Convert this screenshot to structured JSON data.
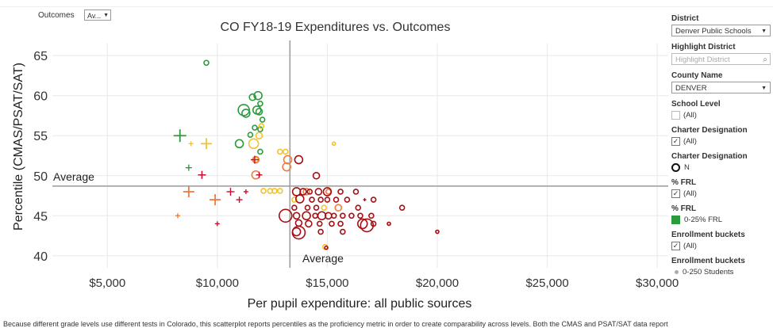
{
  "top": {
    "outcomes_label": "Outcomes",
    "outcomes_value": "Av..."
  },
  "chart_data": {
    "type": "scatter",
    "title": "CO FY18-19 Expenditures vs. Outcomes",
    "xlabel": "Per pupil expenditure: all public sources",
    "ylabel": "Percentile (CMAS/PSAT/SAT)",
    "xlim": [
      2500,
      30500
    ],
    "ylim": [
      38.5,
      66.5
    ],
    "xticks": [
      5000,
      10000,
      15000,
      20000,
      25000,
      30000
    ],
    "xtick_labels": [
      "$5,000",
      "$10,000",
      "$15,000",
      "$20,000",
      "$25,000",
      "$30,000"
    ],
    "yticks": [
      40,
      45,
      50,
      55,
      60,
      65
    ],
    "ytick_labels": [
      "40",
      "45",
      "50",
      "55",
      "60",
      "65"
    ],
    "avg_x": 13300,
    "avg_y": 48.7,
    "avg_x_label": "Average",
    "avg_y_label": "Average",
    "colors": {
      "green": "#2e9a3e",
      "yellow": "#f2c230",
      "orange": "#f07b3f",
      "red": "#c8102e",
      "darkred": "#a50f15"
    },
    "points": [
      {
        "x": 9500,
        "y": 64.1,
        "s": "c",
        "c": "green",
        "r": 3
      },
      {
        "x": 11200,
        "y": 58.2,
        "s": "c",
        "c": "green",
        "r": 7
      },
      {
        "x": 11300,
        "y": 57.8,
        "s": "c",
        "c": "green",
        "r": 5
      },
      {
        "x": 11600,
        "y": 59.8,
        "s": "c",
        "c": "green",
        "r": 4
      },
      {
        "x": 11850,
        "y": 60.0,
        "s": "c",
        "c": "green",
        "r": 5
      },
      {
        "x": 11800,
        "y": 58.2,
        "s": "c",
        "c": "green",
        "r": 5
      },
      {
        "x": 11900,
        "y": 58.0,
        "s": "c",
        "c": "green",
        "r": 4
      },
      {
        "x": 11950,
        "y": 59.0,
        "s": "c",
        "c": "green",
        "r": 3
      },
      {
        "x": 12050,
        "y": 57.0,
        "s": "c",
        "c": "green",
        "r": 3
      },
      {
        "x": 11700,
        "y": 56.0,
        "s": "c",
        "c": "green",
        "r": 3
      },
      {
        "x": 11500,
        "y": 55.1,
        "s": "c",
        "c": "green",
        "r": 3
      },
      {
        "x": 11950,
        "y": 55.8,
        "s": "c",
        "c": "green",
        "r": 3
      },
      {
        "x": 11000,
        "y": 54.0,
        "s": "c",
        "c": "green",
        "r": 5
      },
      {
        "x": 11950,
        "y": 53.0,
        "s": "c",
        "c": "green",
        "r": 3
      },
      {
        "x": 8300,
        "y": 55.0,
        "s": "p",
        "c": "green",
        "r": 8
      },
      {
        "x": 8700,
        "y": 51.0,
        "s": "p",
        "c": "green",
        "r": 4
      },
      {
        "x": 9300,
        "y": 50.1,
        "s": "p",
        "c": "green",
        "r": 5
      },
      {
        "x": 11900,
        "y": 55.0,
        "s": "c",
        "c": "yellow",
        "r": 4
      },
      {
        "x": 12000,
        "y": 56.2,
        "s": "c",
        "c": "yellow",
        "r": 3
      },
      {
        "x": 11650,
        "y": 54.0,
        "s": "c",
        "c": "yellow",
        "r": 6
      },
      {
        "x": 12850,
        "y": 53.0,
        "s": "c",
        "c": "yellow",
        "r": 3
      },
      {
        "x": 13100,
        "y": 53.0,
        "s": "c",
        "c": "yellow",
        "r": 3
      },
      {
        "x": 11750,
        "y": 52.0,
        "s": "c",
        "c": "yellow",
        "r": 3
      },
      {
        "x": 12100,
        "y": 48.1,
        "s": "c",
        "c": "yellow",
        "r": 3
      },
      {
        "x": 12400,
        "y": 48.1,
        "s": "c",
        "c": "yellow",
        "r": 3
      },
      {
        "x": 12600,
        "y": 48.1,
        "s": "c",
        "c": "yellow",
        "r": 3
      },
      {
        "x": 12850,
        "y": 48.1,
        "s": "c",
        "c": "yellow",
        "r": 3
      },
      {
        "x": 15300,
        "y": 54.0,
        "s": "c",
        "c": "yellow",
        "r": 2
      },
      {
        "x": 14850,
        "y": 46.0,
        "s": "c",
        "c": "yellow",
        "r": 3
      },
      {
        "x": 13500,
        "y": 47.0,
        "s": "c",
        "c": "yellow",
        "r": 3
      },
      {
        "x": 14900,
        "y": 41.1,
        "s": "c",
        "c": "yellow",
        "r": 3
      },
      {
        "x": 8800,
        "y": 54.0,
        "s": "p",
        "c": "yellow",
        "r": 3
      },
      {
        "x": 9500,
        "y": 54.0,
        "s": "p",
        "c": "yellow",
        "r": 7
      },
      {
        "x": 11750,
        "y": 52.0,
        "s": "c",
        "c": "orange",
        "r": 4
      },
      {
        "x": 11750,
        "y": 50.1,
        "s": "c",
        "c": "orange",
        "r": 5
      },
      {
        "x": 13200,
        "y": 52.0,
        "s": "c",
        "c": "orange",
        "r": 5
      },
      {
        "x": 13150,
        "y": 51.1,
        "s": "c",
        "c": "orange",
        "r": 5
      },
      {
        "x": 14050,
        "y": 48.0,
        "s": "c",
        "c": "orange",
        "r": 4
      },
      {
        "x": 15050,
        "y": 48.0,
        "s": "c",
        "c": "orange",
        "r": 3
      },
      {
        "x": 15500,
        "y": 46.0,
        "s": "c",
        "c": "orange",
        "r": 4
      },
      {
        "x": 8700,
        "y": 48.0,
        "s": "p",
        "c": "orange",
        "r": 7
      },
      {
        "x": 9900,
        "y": 47.0,
        "s": "p",
        "c": "orange",
        "r": 7
      },
      {
        "x": 8200,
        "y": 45.0,
        "s": "p",
        "c": "orange",
        "r": 3
      },
      {
        "x": 11700,
        "y": 52.0,
        "s": "p",
        "c": "red",
        "r": 5
      },
      {
        "x": 11900,
        "y": 50.1,
        "s": "p",
        "c": "red",
        "r": 4
      },
      {
        "x": 9300,
        "y": 50.1,
        "s": "p",
        "c": "red",
        "r": 5
      },
      {
        "x": 10600,
        "y": 48.0,
        "s": "p",
        "c": "red",
        "r": 5
      },
      {
        "x": 11300,
        "y": 48.0,
        "s": "p",
        "c": "red",
        "r": 3
      },
      {
        "x": 11000,
        "y": 47.0,
        "s": "p",
        "c": "red",
        "r": 4
      },
      {
        "x": 10000,
        "y": 44.0,
        "s": "p",
        "c": "red",
        "r": 3
      },
      {
        "x": 13700,
        "y": 52.0,
        "s": "c",
        "c": "darkred",
        "r": 5
      },
      {
        "x": 14500,
        "y": 50.0,
        "s": "c",
        "c": "darkred",
        "r": 4
      },
      {
        "x": 13600,
        "y": 48.0,
        "s": "c",
        "c": "darkred",
        "r": 5
      },
      {
        "x": 13900,
        "y": 48.0,
        "s": "c",
        "c": "darkred",
        "r": 4
      },
      {
        "x": 14200,
        "y": 48.0,
        "s": "c",
        "c": "darkred",
        "r": 3
      },
      {
        "x": 14600,
        "y": 48.0,
        "s": "c",
        "c": "darkred",
        "r": 4
      },
      {
        "x": 15000,
        "y": 48.0,
        "s": "c",
        "c": "darkred",
        "r": 5
      },
      {
        "x": 13750,
        "y": 47.1,
        "s": "c",
        "c": "darkred",
        "r": 5
      },
      {
        "x": 14300,
        "y": 47.0,
        "s": "c",
        "c": "darkred",
        "r": 3
      },
      {
        "x": 14700,
        "y": 47.0,
        "s": "c",
        "c": "darkred",
        "r": 3
      },
      {
        "x": 15000,
        "y": 47.0,
        "s": "c",
        "c": "darkred",
        "r": 3
      },
      {
        "x": 15400,
        "y": 47.0,
        "s": "c",
        "c": "darkred",
        "r": 3
      },
      {
        "x": 16300,
        "y": 48.0,
        "s": "c",
        "c": "darkred",
        "r": 3
      },
      {
        "x": 17100,
        "y": 47.0,
        "s": "c",
        "c": "darkred",
        "r": 3
      },
      {
        "x": 15600,
        "y": 48.0,
        "s": "c",
        "c": "darkred",
        "r": 3
      },
      {
        "x": 15900,
        "y": 47.0,
        "s": "c",
        "c": "darkred",
        "r": 3
      },
      {
        "x": 16400,
        "y": 46.0,
        "s": "c",
        "c": "darkred",
        "r": 3
      },
      {
        "x": 16700,
        "y": 47.0,
        "s": "p",
        "c": "darkred",
        "r": 2
      },
      {
        "x": 13500,
        "y": 46.0,
        "s": "c",
        "c": "darkred",
        "r": 3
      },
      {
        "x": 14100,
        "y": 46.0,
        "s": "c",
        "c": "darkred",
        "r": 3
      },
      {
        "x": 14500,
        "y": 46.0,
        "s": "c",
        "c": "darkred",
        "r": 3
      },
      {
        "x": 13100,
        "y": 45.0,
        "s": "c",
        "c": "darkred",
        "r": 8
      },
      {
        "x": 13600,
        "y": 45.0,
        "s": "c",
        "c": "darkred",
        "r": 4
      },
      {
        "x": 14050,
        "y": 45.0,
        "s": "c",
        "c": "darkred",
        "r": 5
      },
      {
        "x": 14450,
        "y": 45.0,
        "s": "c",
        "c": "darkred",
        "r": 3
      },
      {
        "x": 14750,
        "y": 45.0,
        "s": "c",
        "c": "darkred",
        "r": 5
      },
      {
        "x": 15050,
        "y": 45.0,
        "s": "c",
        "c": "darkred",
        "r": 4
      },
      {
        "x": 15300,
        "y": 45.0,
        "s": "c",
        "c": "darkred",
        "r": 3
      },
      {
        "x": 15700,
        "y": 45.0,
        "s": "c",
        "c": "darkred",
        "r": 3
      },
      {
        "x": 16100,
        "y": 45.0,
        "s": "c",
        "c": "darkred",
        "r": 3
      },
      {
        "x": 16500,
        "y": 45.0,
        "s": "c",
        "c": "darkred",
        "r": 3
      },
      {
        "x": 17000,
        "y": 45.0,
        "s": "c",
        "c": "darkred",
        "r": 3
      },
      {
        "x": 18400,
        "y": 46.0,
        "s": "c",
        "c": "darkred",
        "r": 3
      },
      {
        "x": 13700,
        "y": 44.1,
        "s": "c",
        "c": "darkred",
        "r": 4
      },
      {
        "x": 14150,
        "y": 44.0,
        "s": "c",
        "c": "darkred",
        "r": 4
      },
      {
        "x": 14650,
        "y": 44.0,
        "s": "c",
        "c": "darkred",
        "r": 3
      },
      {
        "x": 15200,
        "y": 44.0,
        "s": "c",
        "c": "darkred",
        "r": 3
      },
      {
        "x": 15600,
        "y": 44.0,
        "s": "c",
        "c": "darkred",
        "r": 3
      },
      {
        "x": 16600,
        "y": 44.0,
        "s": "c",
        "c": "darkred",
        "r": 6
      },
      {
        "x": 16800,
        "y": 43.8,
        "s": "c",
        "c": "darkred",
        "r": 8
      },
      {
        "x": 17100,
        "y": 44.0,
        "s": "c",
        "c": "darkred",
        "r": 3
      },
      {
        "x": 17800,
        "y": 44.0,
        "s": "c",
        "c": "darkred",
        "r": 2
      },
      {
        "x": 13600,
        "y": 43.0,
        "s": "c",
        "c": "darkred",
        "r": 5
      },
      {
        "x": 13700,
        "y": 42.9,
        "s": "c",
        "c": "darkred",
        "r": 8
      },
      {
        "x": 14700,
        "y": 43.0,
        "s": "c",
        "c": "darkred",
        "r": 3
      },
      {
        "x": 15700,
        "y": 43.0,
        "s": "c",
        "c": "darkred",
        "r": 3
      },
      {
        "x": 20000,
        "y": 43.0,
        "s": "c",
        "c": "darkred",
        "r": 2
      },
      {
        "x": 14950,
        "y": 41.0,
        "s": "c",
        "c": "darkred",
        "r": 2
      }
    ]
  },
  "sidebar": {
    "district_title": "District",
    "district_value": "Denver Public Schools",
    "highlight_title": "Highlight District",
    "highlight_placeholder": "Highlight District",
    "county_title": "County Name",
    "county_value": "DENVER",
    "school_level_title": "School Level",
    "school_level_value": "(All)",
    "charter_title": "Charter Designation",
    "charter_value": "(All)",
    "charter_legend_title": "Charter Designation",
    "charter_legend_value": "N",
    "frl_title": "% FRL",
    "frl_value": "(All)",
    "frl_legend_title": "% FRL",
    "frl_legend_value": "0-25% FRL",
    "enrollment_title": "Enrollment buckets",
    "enrollment_value": "(All)",
    "enrollment_legend_title": "Enrollment buckets",
    "enrollment_legend_value": "0-250 Students"
  },
  "footnote": "Because different grade levels use different tests in Colorado, this scatterplot reports percentiles as the proficiency metric in order to create comparability across levels. Both the CMAS and PSAT/SAT data report"
}
